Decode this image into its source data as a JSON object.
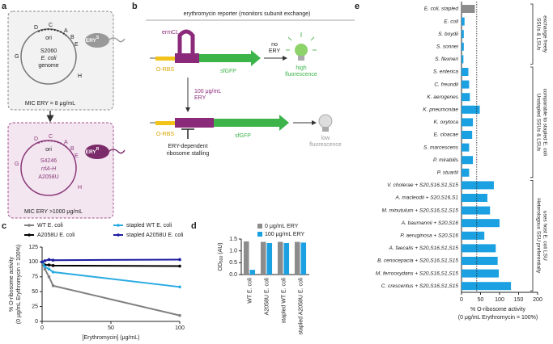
{
  "panel_labels": [
    "a",
    "b",
    "c",
    "d",
    "e"
  ],
  "diagram_a": {
    "top": {
      "markers": [
        "D",
        "C",
        "A",
        "B",
        "E",
        "G",
        "H"
      ],
      "ori": "ori",
      "genome": [
        "S2060",
        "E. coli",
        "genome"
      ],
      "mic": "MIC ERY = 8 μg/mL",
      "cell": {
        "text": "ERY",
        "sup": "S"
      }
    },
    "bottom": {
      "markers": [
        "G",
        "D",
        "C",
        "A",
        "B",
        "E",
        "H"
      ],
      "ori": "ori",
      "genome": [
        "S4246",
        "rrlA-H",
        "A2058U"
      ],
      "mic": "MIC ERY >1000 μg/mL",
      "cell": {
        "text": "ERY",
        "sup": "R"
      }
    }
  },
  "diagram_b": {
    "title": "erythromycin reporter (monitors subunit exchange)",
    "ermcl": "ermCL",
    "rbs_top": "O-RBS",
    "gfp_top": "sfGFP",
    "no_ery": [
      "no",
      "ERY"
    ],
    "high": [
      "high",
      "fluorescence"
    ],
    "treatment": [
      "100 μg/mL",
      "ERY"
    ],
    "rbs_bottom": "O-RBS",
    "gfp_bottom": "sfGFP",
    "stalling": [
      "ERY-dependent",
      "ribosome stalling"
    ],
    "low": [
      "low",
      "fluorescence"
    ]
  },
  "chart_data": [
    {
      "type": "line",
      "y_label": [
        "% O-ribosome activity",
        "(0 μg/mL Erythromycin = 100%)"
      ],
      "x_label": "[Erythromycin] (μg/mL)",
      "x": [
        0,
        2,
        5,
        8,
        100
      ],
      "xlim": [
        0,
        100
      ],
      "xticks": [
        0,
        50,
        100
      ],
      "ylim": [
        0,
        125
      ],
      "yticks": [
        0,
        25,
        50,
        75,
        100,
        125
      ],
      "series": [
        {
          "name": "WT E. coli",
          "color": "#808080",
          "values": [
            100,
            88,
            75,
            60,
            10
          ]
        },
        {
          "name": "A2058U E. coli",
          "color": "#000000",
          "values": [
            100,
            95,
            95,
            94,
            93
          ]
        },
        {
          "name": "stapled WT E. coli",
          "color": "#29abe2",
          "values": [
            100,
            92,
            88,
            83,
            58
          ]
        },
        {
          "name": "stapled A2058U E. coli",
          "color": "#1c1ca0",
          "values": [
            100,
            102,
            104,
            103,
            104
          ]
        }
      ]
    },
    {
      "type": "bar",
      "y_label": {
        "main": "OD",
        "sub": "600",
        "unit": "(AU)"
      },
      "categories": [
        "WT E. coli",
        "A2058U E. coli",
        "stapled WT E. coli",
        "stapled A2058U E. coli"
      ],
      "ylim": [
        0,
        1.5
      ],
      "yticks": [
        {
          "value": 0,
          "label": "0.0"
        },
        0.5,
        {
          "value": 1,
          "label": "1.0"
        },
        1.5
      ],
      "series": [
        {
          "name": "0 μg/mL ERY",
          "color": "#8c8c8c",
          "values": [
            1.4,
            1.38,
            1.38,
            1.38
          ]
        },
        {
          "name": "100 μg/mL ERY",
          "color": "#1ba1e2",
          "values": [
            0.2,
            1.33,
            1.33,
            1.35
          ]
        }
      ]
    },
    {
      "type": "barh",
      "x_label": [
        "% O-ribosome activity",
        "(0 μg/mL Erythromycin = 100%)"
      ],
      "xlim": [
        0,
        200
      ],
      "xticks": [
        0,
        50,
        100,
        150,
        200
      ],
      "reference_x": 40,
      "groups": [
        {
          "label": [
            "SSUs & LSUs",
            "exchange freely"
          ],
          "categories": [
            "E. coli, stapled",
            "E. coli",
            "S. boydii",
            "S. sonnei",
            "S. flexneri"
          ],
          "values": [
            35,
            8,
            6,
            6,
            5
          ],
          "colors": [
            "#8c8c8c",
            "#1ba1e2",
            "#1ba1e2",
            "#1ba1e2",
            "#1ba1e2"
          ]
        },
        {
          "label": [
            "Unstapled SSUs & LSUs",
            "comparable to stapled E. coli"
          ],
          "categories": [
            "S. enterica",
            "C. freundii",
            "K. aerogenes",
            "K. pneumoniae",
            "K. oxytoca",
            "E. cloacae",
            "S. marcescens",
            "P. mirabilis",
            "P. stuartii"
          ],
          "values": [
            18,
            20,
            22,
            48,
            30,
            28,
            20,
            30,
            20
          ],
          "colors": [
            "#1ba1e2",
            "#1ba1e2",
            "#1ba1e2",
            "#1ba1e2",
            "#1ba1e2",
            "#1ba1e2",
            "#1ba1e2",
            "#1ba1e2",
            "#1ba1e2"
          ]
        },
        {
          "label": [
            "Heterologous SSU preferentially",
            "uses host E. coli LSU"
          ],
          "categories": [
            "V. cholerae + S20,S16,S1,S15",
            "A. macleodii + S20,S16,S1",
            "M. minutulum + S20,S16,S1,S15",
            "A. baumannii + S20,S16",
            "P. aeruginosa + S20,S16",
            "A. faecalis + S20,S16,S1,S15",
            "B. cenocepacia + S20,S16,S1,S15",
            "M. ferrooxydans + S20,S16,S1,S15",
            "C. crescentus + S20,S16,S1,S15"
          ],
          "values": [
            85,
            68,
            75,
            100,
            60,
            90,
            95,
            98,
            130
          ],
          "colors": [
            "#1ba1e2",
            "#1ba1e2",
            "#1ba1e2",
            "#1ba1e2",
            "#1ba1e2",
            "#1ba1e2",
            "#1ba1e2",
            "#1ba1e2",
            "#1ba1e2"
          ]
        }
      ]
    }
  ]
}
